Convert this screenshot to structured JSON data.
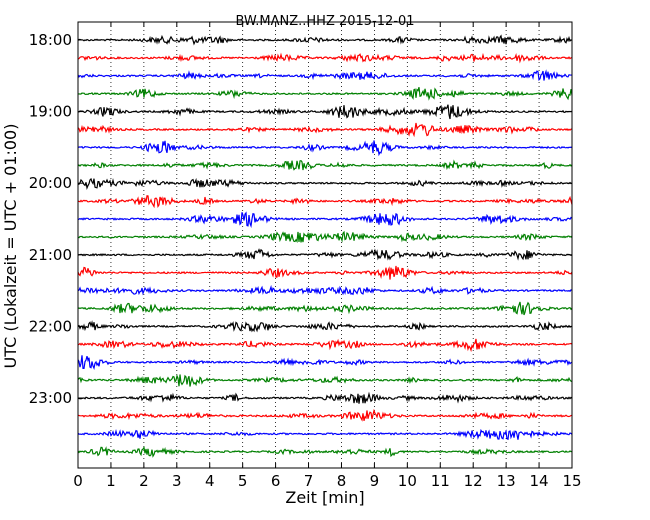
{
  "chart_data": {
    "type": "line",
    "title": "BW.MANZ..HHZ 2015-12-01",
    "xlabel": "Zeit  [min]",
    "ylabel": "UTC (Lokalzeit = UTC + 01:00)",
    "xlim": [
      0,
      15
    ],
    "x_ticks": [
      "0",
      "1",
      "2",
      "3",
      "4",
      "5",
      "6",
      "7",
      "8",
      "9",
      "10",
      "11",
      "12",
      "13",
      "14",
      "15"
    ],
    "y_ticks": [
      "18:00",
      "19:00",
      "20:00",
      "21:00",
      "22:00",
      "23:00"
    ],
    "trace_colors": [
      "#000000",
      "#ff0000",
      "#0000ff",
      "#008000"
    ],
    "trace_count": 24,
    "grid": "vertical-dotted"
  }
}
